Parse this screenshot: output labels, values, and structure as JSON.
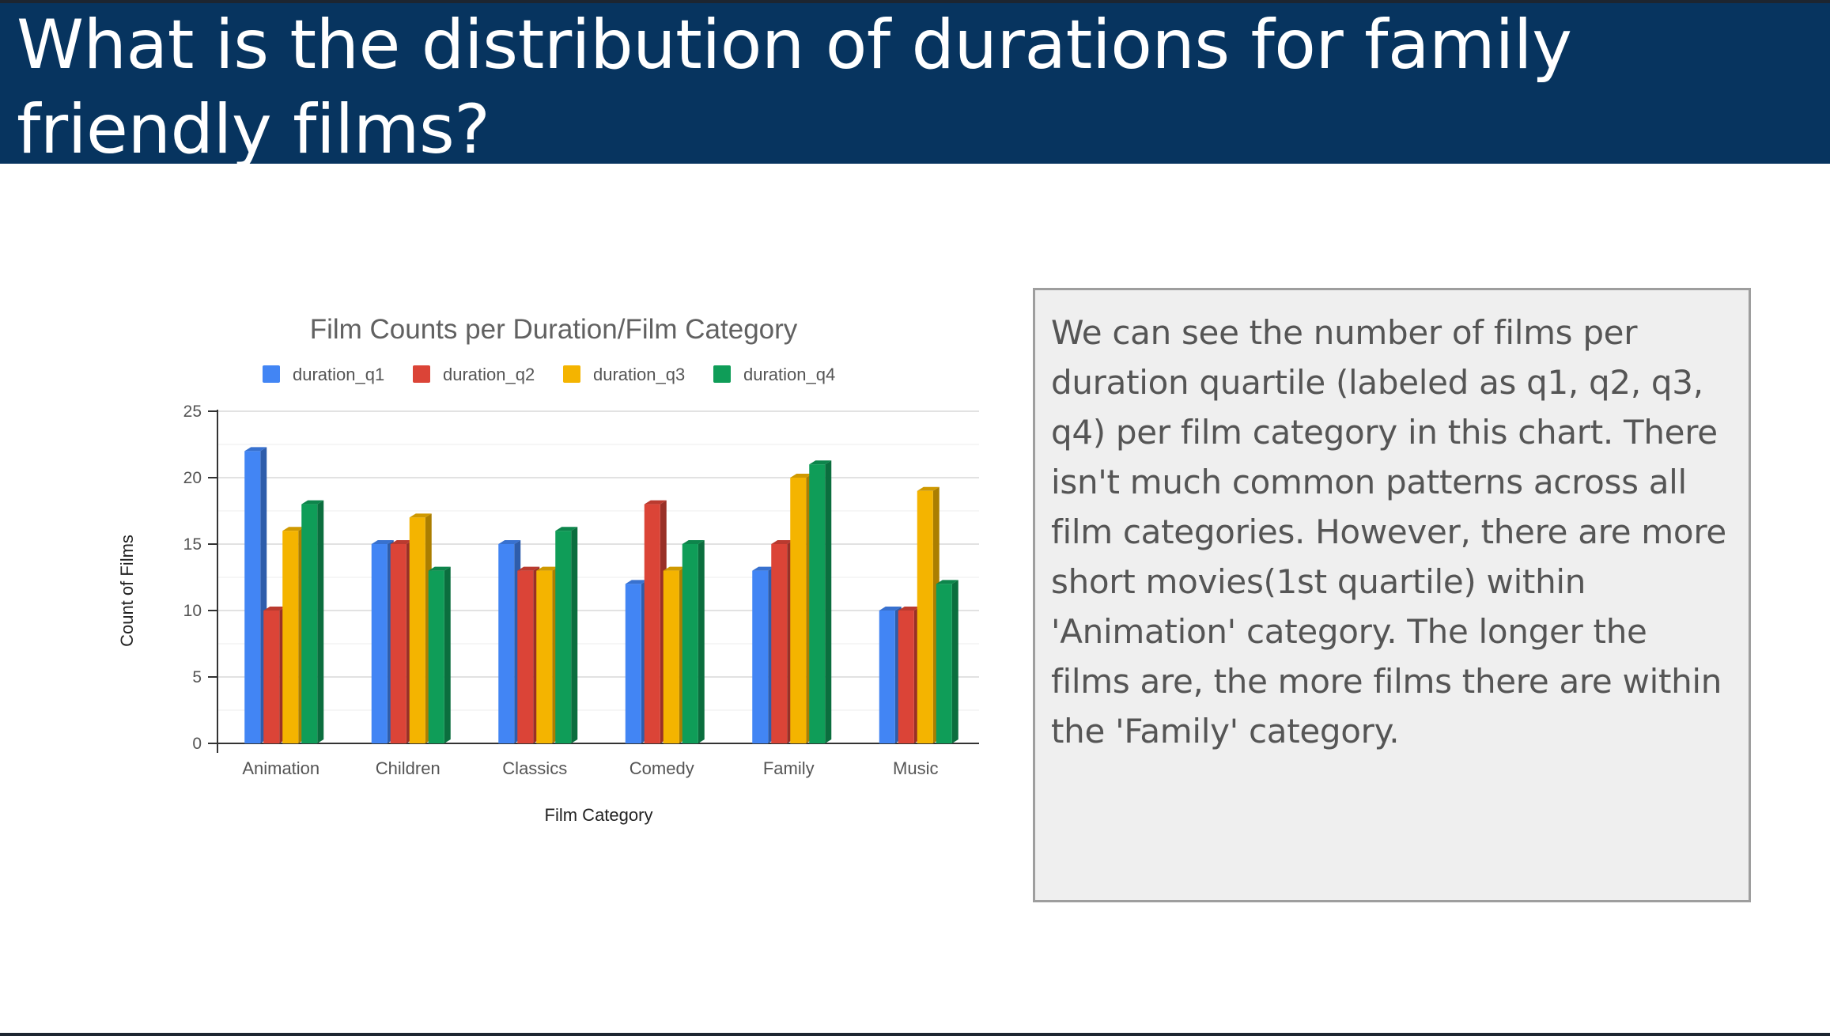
{
  "slide": {
    "title": "What is the distribution of durations for family friendly films?",
    "notes": "We can see the number of films per duration quartile (labeled as q1, q2, q3, q4) per film category in this chart. There isn't much common patterns across all film categories. However, there are more short movies(1st quartile) within 'Animation' category. The longer the films are, the more films there are within the 'Family' category."
  },
  "colors": {
    "header_background": "#07345f",
    "notes_background": "#efefef",
    "notes_border": "#9e9e9e"
  },
  "chart_data": {
    "type": "bar",
    "style": "3d-column",
    "title": "Film Counts per Duration/Film Category",
    "xlabel": "Film Category",
    "ylabel": "Count of Films",
    "ylim": [
      0,
      25
    ],
    "yticks": [
      "0",
      "5",
      "10",
      "15",
      "20",
      "25"
    ],
    "grid": true,
    "legend_position": "top",
    "categories": [
      "Animation",
      "Children",
      "Classics",
      "Comedy",
      "Family",
      "Music"
    ],
    "series": [
      {
        "name": "duration_q1",
        "color": "#4285f4",
        "values": [
          22,
          15,
          15,
          12,
          13,
          10
        ]
      },
      {
        "name": "duration_q2",
        "color": "#db4437",
        "values": [
          10,
          15,
          13,
          18,
          15,
          10
        ]
      },
      {
        "name": "duration_q3",
        "color": "#f4b400",
        "values": [
          16,
          17,
          13,
          13,
          20,
          19
        ]
      },
      {
        "name": "duration_q4",
        "color": "#0f9d58",
        "values": [
          18,
          13,
          16,
          15,
          21,
          12
        ]
      }
    ]
  }
}
